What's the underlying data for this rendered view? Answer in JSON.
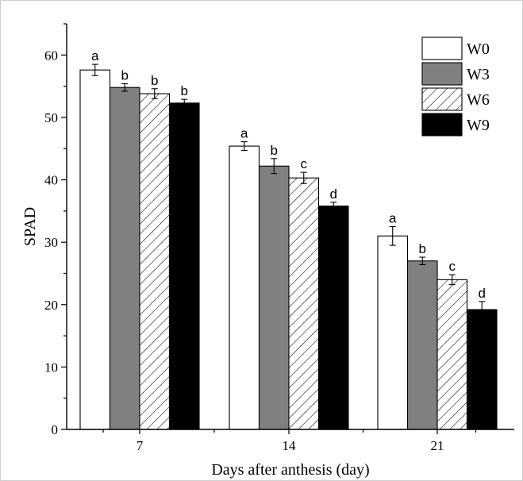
{
  "chart_data": {
    "type": "bar",
    "xlabel": "Days after anthesis (day)",
    "ylabel": "SPAD",
    "ylim": [
      0,
      65
    ],
    "yticks": [
      0,
      10,
      20,
      30,
      40,
      50,
      60
    ],
    "categories": [
      "7",
      "14",
      "21"
    ],
    "legend_position": "top-right",
    "grid": false,
    "series": [
      {
        "name": "W0",
        "fill": "white",
        "values": [
          57.6,
          45.4,
          31.0
        ],
        "errors": [
          0.9,
          0.7,
          1.5
        ],
        "letters": [
          "a",
          "a",
          "a"
        ]
      },
      {
        "name": "W3",
        "fill": "gray",
        "values": [
          54.8,
          42.2,
          27.0
        ],
        "errors": [
          0.6,
          1.2,
          0.6
        ],
        "letters": [
          "b",
          "b",
          "b"
        ]
      },
      {
        "name": "W6",
        "fill": "hatched",
        "values": [
          53.8,
          40.3,
          24.0
        ],
        "errors": [
          0.8,
          0.9,
          0.8
        ],
        "letters": [
          "b",
          "c",
          "c"
        ]
      },
      {
        "name": "W9",
        "fill": "black",
        "values": [
          52.3,
          35.8,
          19.2
        ],
        "errors": [
          0.6,
          0.6,
          1.3
        ],
        "letters": [
          "b",
          "d",
          "d"
        ]
      }
    ],
    "colors": {
      "white": "#ffffff",
      "gray": "#808080",
      "hatched": "#ffffff",
      "black": "#000000"
    }
  }
}
